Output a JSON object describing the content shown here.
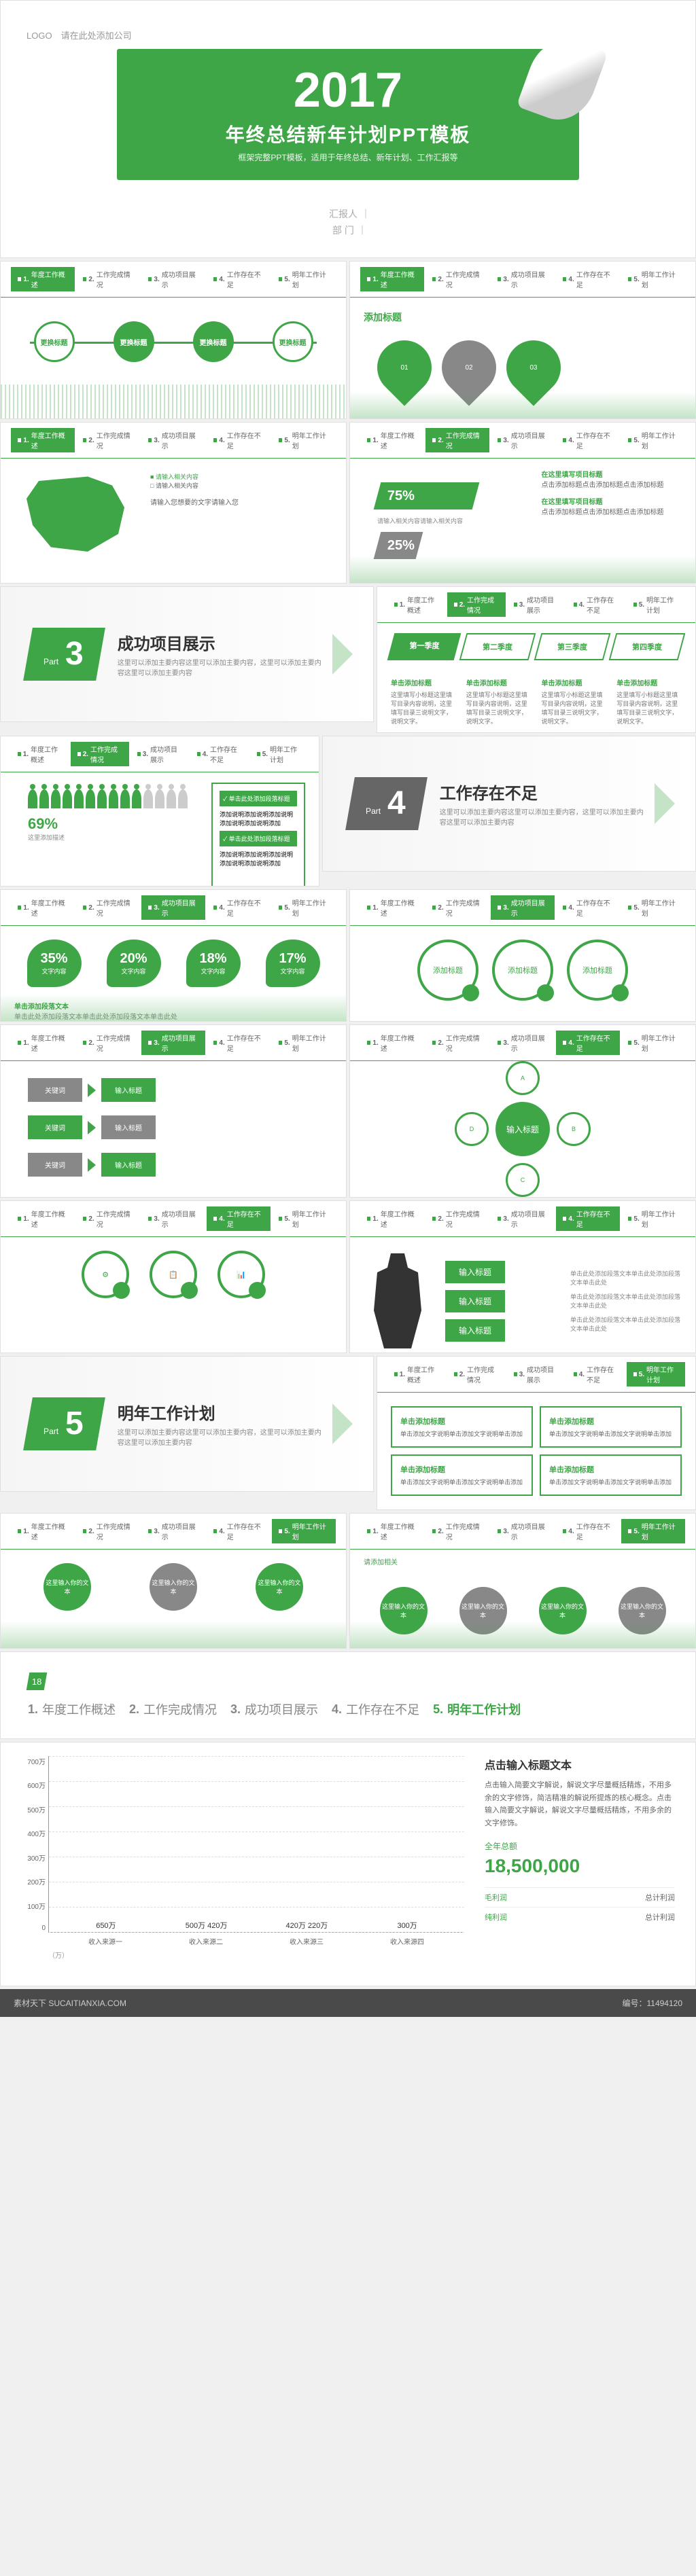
{
  "colors": {
    "primary": "#3fa648",
    "gray": "#888888",
    "text": "#666666",
    "bg": "#ffffff"
  },
  "cover": {
    "logo": "LOGO",
    "logo_hint": "请在此处添加公司",
    "year": "2017",
    "title": "年终总结新年计划PPT模板",
    "subtitle": "框架完整PPT模板，适用于年终总结、新年计划、工作汇报等",
    "presenter_label": "汇报人",
    "presenter": "",
    "dept_label": "部 门",
    "dept": ""
  },
  "nav": [
    {
      "n": "1",
      "t": "年度工作概述"
    },
    {
      "n": "2",
      "t": "工作完成情况"
    },
    {
      "n": "3",
      "t": "成功项目展示"
    },
    {
      "n": "4",
      "t": "工作存在不足"
    },
    {
      "n": "5",
      "t": "明年工作计划"
    }
  ],
  "sections": {
    "s3": {
      "part": "Part",
      "num": "3",
      "title": "成功项目展示",
      "desc": "这里可以添加主要内容这里可以添加主要内容，这里可以添加主要内容这里可以添加主要内容"
    },
    "s4": {
      "part": "Part",
      "num": "4",
      "title": "工作存在不足",
      "desc": "这里可以添加主要内容这里可以添加主要内容，这里可以添加主要内容这里可以添加主要内容"
    },
    "s5": {
      "part": "Part",
      "num": "5",
      "title": "明年工作计划",
      "desc": "这里可以添加主要内容这里可以添加主要内容，这里可以添加主要内容这里可以添加主要内容"
    }
  },
  "add_title": "添加标题",
  "input_title": "输入标题",
  "circles": [
    "更换标题",
    "更换标题",
    "更换标题",
    "更换标题"
  ],
  "map": {
    "hint": "请输入您想要的文字请输入您",
    "legend": "请输入相关内容"
  },
  "percents": {
    "p1": {
      "val": "75%",
      "hint": "请输入相关内容请输入相关内容"
    },
    "p2": {
      "val": "25%",
      "hint": "请输入相关内容"
    },
    "t1": "在这里填写项目标题",
    "t2": "在这里填写项目标题",
    "d": "点击添加标题点击添加标题点击添加标题"
  },
  "quarters": [
    "第一季度",
    "第二季度",
    "第三季度",
    "第四季度"
  ],
  "quarter_head": "单击添加标题",
  "quarter_text": "这里填写小标题这里填写目录内容说明，这里填写目录三说明文字，说明文字。",
  "people_pct": "69%",
  "people_text": "这里添加描述",
  "people_box1": "单击此处添加段落标题",
  "people_box2": "添加说明添加说明添加说明添加说明添加说明添加",
  "stats": [
    {
      "p": "35%",
      "l": "文字内容"
    },
    {
      "p": "20%",
      "l": "文字内容"
    },
    {
      "p": "18%",
      "l": "文字内容"
    },
    {
      "p": "17%",
      "l": "文字内容"
    }
  ],
  "stat_title": "单击添加段落文本",
  "stat_desc": "单击此处添加段落文本单击此处添加段落文本单击此处",
  "flow": {
    "a": "关键词",
    "b": "输入标题",
    "c": "关键词",
    "d": "输入标题"
  },
  "input_labels": [
    "输入标题",
    "输入标题",
    "输入标题"
  ],
  "gears": [
    "这里输入你的文本",
    "这里输入你的文本",
    "这里输入你的文本",
    "这里输入你的文本"
  ],
  "gear_hint": "请添加相关",
  "box_title": "单击添加标题",
  "box_text": "单击添加文字说明单击添加文字说明单击添加",
  "chart": {
    "title": "点击输入标题文本",
    "desc": "点击输入简要文字解说，解说文字尽量概括精炼，不用多余的文字修饰，简洁精准的解说所提炼的核心概念。点击输入简要文字解说，解说文字尽量概括精炼，不用多余的文字修饰。",
    "total_label": "全年总额",
    "total": "18,500,000",
    "ymax": 700,
    "ystep": 100,
    "unit": "（万）",
    "ytics": [
      "700万",
      "600万",
      "500万",
      "400万",
      "300万",
      "200万",
      "100万",
      "0"
    ],
    "bars": [
      {
        "label": "收入来源一",
        "value": "650万",
        "h": 93,
        "color": "#3fa648"
      },
      {
        "label": "收入来源二",
        "value": "500万\n420万",
        "h": 71,
        "color": "#3fa648"
      },
      {
        "label": "收入来源三",
        "value": "420万\n220万",
        "h": 60,
        "color": "#3fa648"
      },
      {
        "label": "收入来源四",
        "value": "300万",
        "h": 43,
        "color": "#3fa648"
      }
    ],
    "profit": [
      {
        "k": "毛利润",
        "v": "总计利润"
      },
      {
        "k": "纯利润",
        "v": "总计利润"
      }
    ]
  },
  "footer": {
    "site": "素材天下 SUCAITIANXIA.COM",
    "id_label": "编号：",
    "id": "11494120"
  }
}
